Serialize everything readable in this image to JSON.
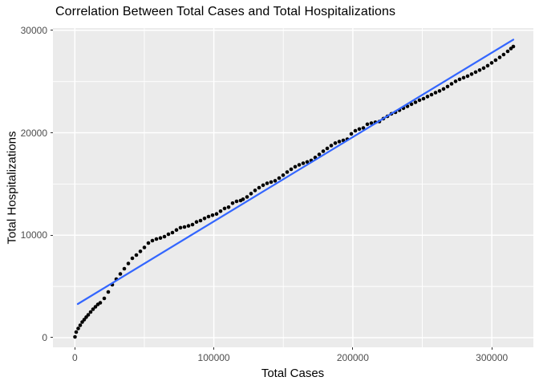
{
  "chart_data": {
    "type": "scatter",
    "title": "Correlation Between Total Cases and Total Hospitalizations",
    "xlabel": "Total Cases",
    "ylabel": "Total Hospitalizations",
    "legend": "none",
    "grid": "major-and-minor-white-on-gray",
    "x_domain": [
      -15750,
      329900
    ],
    "y_domain": [
      -940,
      30220
    ],
    "x_ticks": [
      0,
      100000,
      200000,
      300000
    ],
    "x_tick_labels": [
      "0",
      "100000",
      "200000",
      "300000"
    ],
    "x_minor_ticks": [
      50000,
      150000,
      250000
    ],
    "y_ticks": [
      0,
      10000,
      20000,
      30000
    ],
    "y_tick_labels": [
      "0",
      "10000",
      "20000",
      "30000"
    ],
    "y_minor_ticks": [
      5000,
      15000,
      25000
    ],
    "colors": {
      "panel_background": "#EBEBEB",
      "gridline": "#FFFFFF",
      "points": "#000000",
      "smooth_line": "#3366FF",
      "axis_text": "#4D4D4D",
      "axis_title": "#000000",
      "title": "#000000",
      "tick_mark": "#333333"
    },
    "series": [
      {
        "name": "observations",
        "geom": "point",
        "color": "#000000",
        "point_radius": 2.3,
        "points": [
          [
            100,
            80
          ],
          [
            980,
            550
          ],
          [
            2420,
            900
          ],
          [
            3870,
            1215
          ],
          [
            5310,
            1525
          ],
          [
            6750,
            1760
          ],
          [
            8190,
            2000
          ],
          [
            9640,
            2230
          ],
          [
            11370,
            2505
          ],
          [
            13100,
            2780
          ],
          [
            14830,
            3015
          ],
          [
            16560,
            3250
          ],
          [
            18290,
            3405
          ],
          [
            21180,
            3835
          ],
          [
            24060,
            4465
          ],
          [
            26950,
            5170
          ],
          [
            29830,
            5715
          ],
          [
            32720,
            6225
          ],
          [
            35600,
            6735
          ],
          [
            38490,
            7240
          ],
          [
            41370,
            7750
          ],
          [
            44250,
            8065
          ],
          [
            47140,
            8420
          ],
          [
            50020,
            8810
          ],
          [
            52910,
            9240
          ],
          [
            55800,
            9475
          ],
          [
            58680,
            9630
          ],
          [
            61570,
            9735
          ],
          [
            64450,
            9865
          ],
          [
            67340,
            10100
          ],
          [
            70220,
            10255
          ],
          [
            73100,
            10515
          ],
          [
            75990,
            10730
          ],
          [
            78870,
            10805
          ],
          [
            81760,
            10910
          ],
          [
            84640,
            11040
          ],
          [
            87530,
            11300
          ],
          [
            90410,
            11430
          ],
          [
            93300,
            11640
          ],
          [
            96180,
            11820
          ],
          [
            99070,
            11955
          ],
          [
            101950,
            12080
          ],
          [
            104840,
            12345
          ],
          [
            107720,
            12610
          ],
          [
            110610,
            12740
          ],
          [
            113490,
            13130
          ],
          [
            116380,
            13310
          ],
          [
            119260,
            13390
          ],
          [
            121000,
            13510
          ],
          [
            123880,
            13740
          ],
          [
            126770,
            14060
          ],
          [
            129650,
            14370
          ],
          [
            132540,
            14640
          ],
          [
            135420,
            14880
          ],
          [
            138310,
            15070
          ],
          [
            141190,
            15190
          ],
          [
            144080,
            15310
          ],
          [
            146960,
            15580
          ],
          [
            149850,
            15860
          ],
          [
            152730,
            16170
          ],
          [
            155620,
            16440
          ],
          [
            158500,
            16680
          ],
          [
            161390,
            16870
          ],
          [
            164270,
            17030
          ],
          [
            167160,
            17150
          ],
          [
            170040,
            17305
          ],
          [
            172930,
            17580
          ],
          [
            175810,
            17890
          ],
          [
            178700,
            18200
          ],
          [
            181580,
            18480
          ],
          [
            184470,
            18750
          ],
          [
            187350,
            18990
          ],
          [
            190240,
            19140
          ],
          [
            193120,
            19260
          ],
          [
            196010,
            19380
          ],
          [
            198890,
            19890
          ],
          [
            201780,
            20200
          ],
          [
            204660,
            20360
          ],
          [
            207550,
            20475
          ],
          [
            210430,
            20830
          ],
          [
            213320,
            20945
          ],
          [
            216200,
            21025
          ],
          [
            219090,
            21100
          ],
          [
            221970,
            21380
          ],
          [
            224860,
            21610
          ],
          [
            227740,
            21850
          ],
          [
            230630,
            22000
          ],
          [
            233510,
            22200
          ],
          [
            236400,
            22395
          ],
          [
            239280,
            22590
          ],
          [
            242170,
            22790
          ],
          [
            245050,
            22980
          ],
          [
            247940,
            23180
          ],
          [
            250820,
            23330
          ],
          [
            253710,
            23530
          ],
          [
            256590,
            23725
          ],
          [
            259480,
            23920
          ],
          [
            262360,
            24080
          ],
          [
            265250,
            24275
          ],
          [
            268130,
            24510
          ],
          [
            271020,
            24780
          ],
          [
            273900,
            25020
          ],
          [
            276790,
            25215
          ],
          [
            279670,
            25370
          ],
          [
            282560,
            25530
          ],
          [
            285440,
            25725
          ],
          [
            288330,
            25920
          ],
          [
            291210,
            26115
          ],
          [
            294100,
            26310
          ],
          [
            296980,
            26545
          ],
          [
            299870,
            26820
          ],
          [
            302750,
            27090
          ],
          [
            305640,
            27365
          ],
          [
            308520,
            27640
          ],
          [
            311410,
            27950
          ],
          [
            313720,
            28225
          ],
          [
            315450,
            28420
          ]
        ]
      },
      {
        "name": "linear-fit",
        "geom": "line",
        "color": "#3366FF",
        "line_width": 2.2,
        "points": [
          [
            2130,
            3290
          ],
          [
            315450,
            29090
          ]
        ]
      }
    ]
  }
}
